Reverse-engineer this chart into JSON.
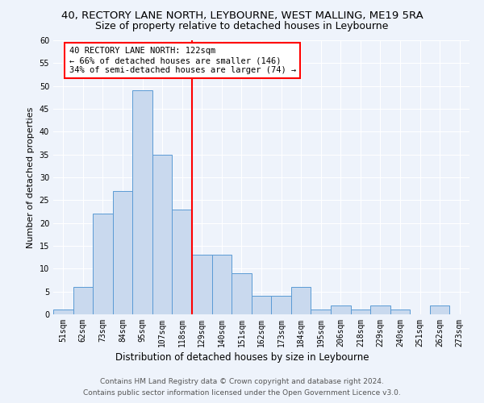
{
  "title": "40, RECTORY LANE NORTH, LEYBOURNE, WEST MALLING, ME19 5RA",
  "subtitle": "Size of property relative to detached houses in Leybourne",
  "xlabel": "Distribution of detached houses by size in Leybourne",
  "ylabel": "Number of detached properties",
  "bar_labels": [
    "51sqm",
    "62sqm",
    "73sqm",
    "84sqm",
    "95sqm",
    "107sqm",
    "118sqm",
    "129sqm",
    "140sqm",
    "151sqm",
    "162sqm",
    "173sqm",
    "184sqm",
    "195sqm",
    "206sqm",
    "218sqm",
    "229sqm",
    "240sqm",
    "251sqm",
    "262sqm",
    "273sqm"
  ],
  "bar_values": [
    1,
    6,
    22,
    27,
    49,
    35,
    23,
    13,
    13,
    9,
    4,
    4,
    6,
    1,
    2,
    1,
    2,
    1,
    0,
    2,
    0
  ],
  "bar_color": "#c9d9ee",
  "bar_edge_color": "#5b9bd5",
  "ylim": [
    0,
    60
  ],
  "yticks": [
    0,
    5,
    10,
    15,
    20,
    25,
    30,
    35,
    40,
    45,
    50,
    55,
    60
  ],
  "red_line_bin_index": 6,
  "annotation_text": "40 RECTORY LANE NORTH: 122sqm\n← 66% of detached houses are smaller (146)\n34% of semi-detached houses are larger (74) →",
  "footer_line1": "Contains HM Land Registry data © Crown copyright and database right 2024.",
  "footer_line2": "Contains public sector information licensed under the Open Government Licence v3.0.",
  "background_color": "#eef3fb",
  "grid_color": "#ffffff",
  "title_fontsize": 9.5,
  "subtitle_fontsize": 9,
  "annotation_fontsize": 7.5,
  "tick_fontsize": 7,
  "ylabel_fontsize": 8,
  "xlabel_fontsize": 8.5,
  "footer_fontsize": 6.5
}
